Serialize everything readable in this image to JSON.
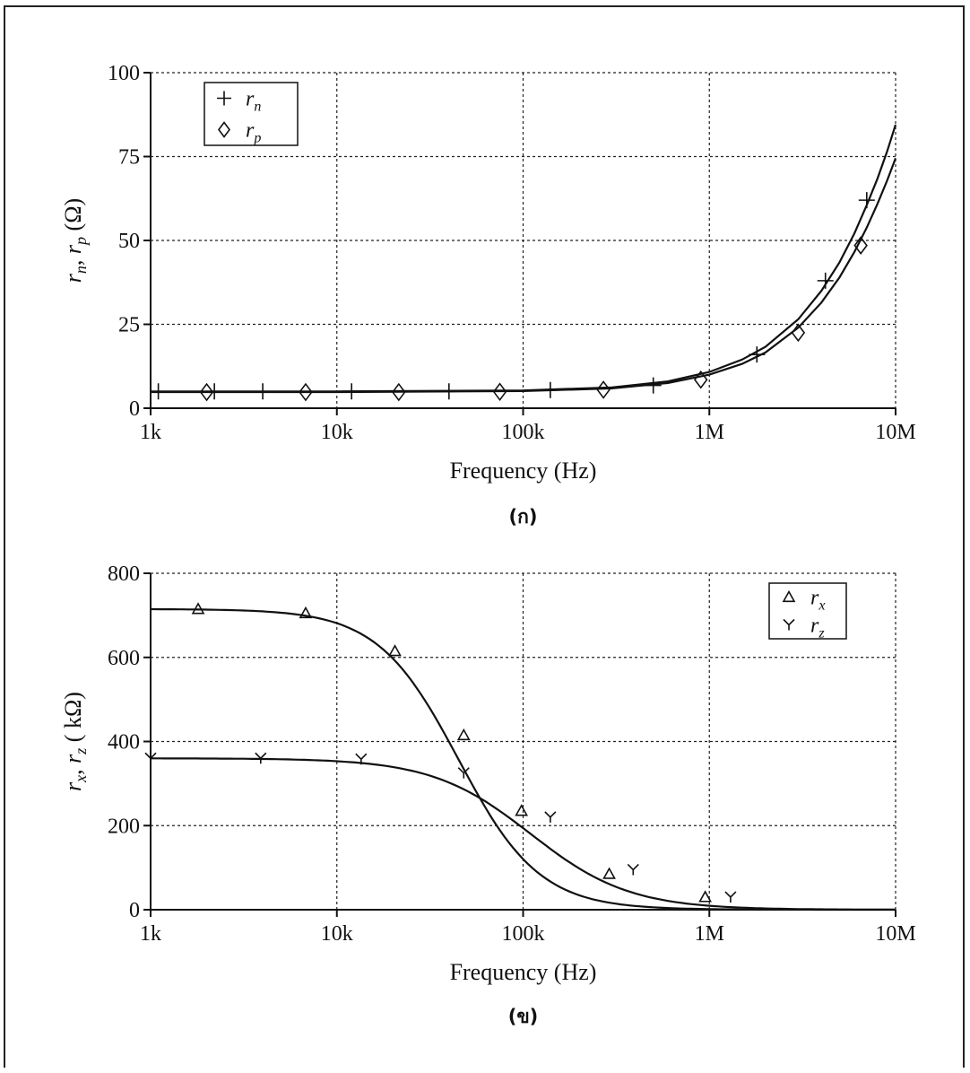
{
  "chart_data": [
    {
      "type": "line",
      "caption": "(ก)",
      "xlabel": "Frequency (Hz)",
      "ylabel": "r_n, r_p (Ω)",
      "ylabel_parts": {
        "a": "r",
        "a_sub": "n",
        "sep": ", ",
        "b": "r",
        "b_sub": "p",
        "unit": " (Ω)"
      },
      "x_scale": "log",
      "xlim": [
        1000,
        10000000
      ],
      "ylim": [
        0,
        100
      ],
      "x_ticks": [
        1000,
        10000,
        100000,
        1000000,
        10000000
      ],
      "x_tick_labels": [
        "1k",
        "10k",
        "100k",
        "1M",
        "10M"
      ],
      "y_ticks": [
        0,
        25,
        50,
        75,
        100
      ],
      "y_tick_labels": [
        "0",
        "25",
        "50",
        "75",
        "100"
      ],
      "grid": true,
      "legend_position": "top-left",
      "series": [
        {
          "name": "r_n",
          "label": "r",
          "sub": "n",
          "marker": "plus",
          "curve_x": [
            1000,
            10000,
            100000,
            300000,
            600000,
            1000000,
            1500000,
            2000000,
            3000000,
            4000000,
            5000000,
            6000000,
            7000000,
            8000000,
            9000000,
            10000000
          ],
          "curve_y": [
            5,
            5,
            5.3,
            6.2,
            8.0,
            10.8,
            14.5,
            18.3,
            26.5,
            35,
            43.5,
            52,
            60.5,
            68.5,
            76.5,
            84.5
          ],
          "marker_x": [
            1100,
            2200,
            4000,
            12000,
            40000,
            140000,
            500000,
            1800000,
            4200000,
            7000000
          ],
          "marker_y": [
            5,
            5,
            5,
            5,
            5,
            5.4,
            6.8,
            16,
            38,
            62
          ]
        },
        {
          "name": "r_p",
          "label": "r",
          "sub": "p",
          "marker": "diamond",
          "curve_x": [
            1000,
            10000,
            100000,
            300000,
            600000,
            1000000,
            1500000,
            2000000,
            3000000,
            4000000,
            5000000,
            6000000,
            7000000,
            8000000,
            9000000,
            10000000
          ],
          "curve_y": [
            4.8,
            4.8,
            5.1,
            5.9,
            7.5,
            10,
            13.2,
            16.6,
            24,
            31.5,
            39,
            46.5,
            53.8,
            61,
            67.8,
            74.5
          ],
          "marker_x": [
            2000,
            6800,
            21500,
            75000,
            270000,
            900000,
            3000000,
            6500000
          ],
          "marker_y": [
            4.8,
            4.8,
            4.8,
            4.9,
            5.5,
            8.5,
            22.5,
            48.5
          ]
        }
      ]
    },
    {
      "type": "line",
      "caption": "(ข)",
      "xlabel": "Frequency (Hz)",
      "ylabel": "r_x, r_z ( kΩ)",
      "ylabel_parts": {
        "a": "r",
        "a_sub": "x",
        "sep": ", ",
        "b": "r",
        "b_sub": "z",
        "unit": " ( kΩ)"
      },
      "x_scale": "log",
      "xlim": [
        1000,
        10000000
      ],
      "ylim": [
        0,
        800
      ],
      "x_ticks": [
        1000,
        10000,
        100000,
        1000000,
        10000000
      ],
      "x_tick_labels": [
        "1k",
        "10k",
        "100k",
        "1M",
        "10M"
      ],
      "y_ticks": [
        0,
        200,
        400,
        600,
        800
      ],
      "y_tick_labels": [
        "0",
        "200",
        "400",
        "600",
        "800"
      ],
      "grid": true,
      "legend_position": "top-right",
      "series": [
        {
          "name": "r_x",
          "label": "r",
          "sub": "x",
          "marker": "triangle",
          "model": {
            "r0": 715,
            "fc": 45000,
            "n": 1.0
          },
          "marker_x": [
            1800,
            6800,
            20500,
            48000,
            98000,
            290000,
            950000
          ],
          "marker_y": [
            715,
            705,
            615,
            415,
            235,
            85,
            30
          ]
        },
        {
          "name": "r_z",
          "label": "r",
          "sub": "z",
          "marker": "y",
          "model": {
            "r0": 360,
            "fc": 110000,
            "n": 0.82
          },
          "marker_x": [
            1000,
            3900,
            13500,
            48000,
            140000,
            390000,
            1300000
          ],
          "marker_y": [
            360,
            360,
            358,
            325,
            220,
            95,
            30
          ]
        }
      ]
    }
  ]
}
